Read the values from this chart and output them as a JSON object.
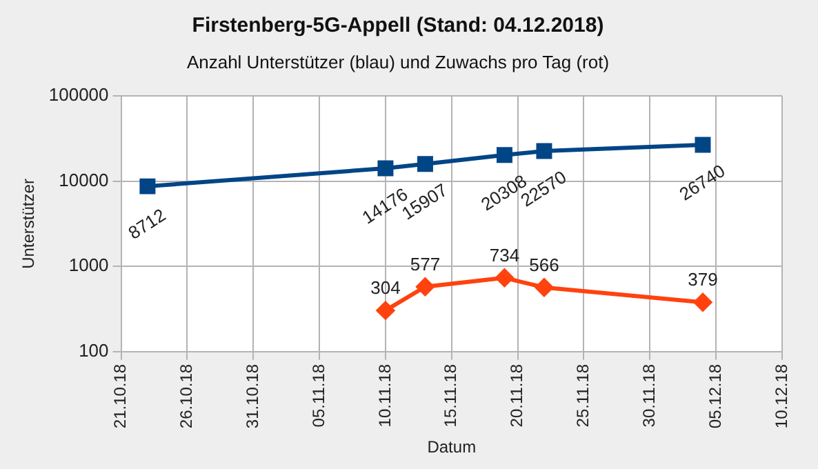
{
  "chart_data": {
    "type": "line",
    "title": "Firstenberg-5G-Appell (Stand: 04.12.2018)",
    "subtitle": "Anzahl Unterstützer (blau) und Zuwachs pro Tag (rot)",
    "xlabel": "Datum",
    "ylabel": "Unterstützer",
    "x": [
      "2018-10-23",
      "2018-11-10",
      "2018-11-13",
      "2018-11-19",
      "2018-11-22",
      "2018-12-04"
    ],
    "series": [
      {
        "color": "#004586",
        "marker": "square",
        "values": [
          8712,
          14176,
          15907,
          20308,
          22570,
          26740
        ]
      },
      {
        "color": "#ff420e",
        "marker": "diamond",
        "values": [
          null,
          304,
          577,
          734,
          566,
          379
        ]
      }
    ],
    "log": "y",
    "ylim": [
      100,
      100000
    ],
    "yticks": [
      100,
      1000,
      10000,
      100000
    ],
    "xlim": [
      "2018-10-21",
      "2018-12-10"
    ],
    "xticks": [
      {
        "value": "2018-10-21",
        "label": "21.10.18"
      },
      {
        "value": "2018-10-26",
        "label": "26.10.18"
      },
      {
        "value": "2018-10-31",
        "label": "31.10.18"
      },
      {
        "value": "2018-11-05",
        "label": "05.11.18"
      },
      {
        "value": "2018-11-10",
        "label": "10.11.18"
      },
      {
        "value": "2018-11-15",
        "label": "15.11.18"
      },
      {
        "value": "2018-11-20",
        "label": "20.11.18"
      },
      {
        "value": "2018-11-25",
        "label": "25.11.18"
      },
      {
        "value": "2018-11-30",
        "label": "30.11.18"
      },
      {
        "value": "2018-12-05",
        "label": "05.12.18"
      },
      {
        "value": "2018-12-10",
        "label": "10.12.18"
      }
    ],
    "grid": true,
    "legend": false,
    "data_labels": true,
    "line_style": "solid"
  }
}
